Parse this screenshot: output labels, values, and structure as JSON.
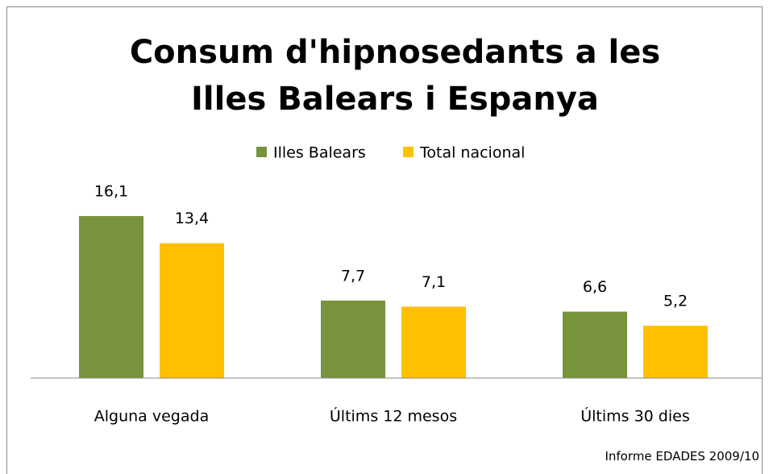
{
  "chart_data": {
    "type": "bar",
    "title": "Consum d'hipnosedants a les Illes Balears i Espanya",
    "categories": [
      "Alguna vegada",
      "Últims 12 mesos",
      "Últims 30 dies"
    ],
    "series": [
      {
        "name": "Illes Balears",
        "color": "#77933c",
        "values": [
          16.1,
          7.7,
          6.6
        ],
        "value_labels": [
          "16,1",
          "7,7",
          "6,6"
        ]
      },
      {
        "name": "Total nacional",
        "color": "#ffc000",
        "values": [
          13.4,
          7.1,
          5.2
        ],
        "value_labels": [
          "13,4",
          "7,1",
          "5,2"
        ]
      }
    ],
    "legend": "top",
    "source": "Informe EDADES 2009/10"
  }
}
